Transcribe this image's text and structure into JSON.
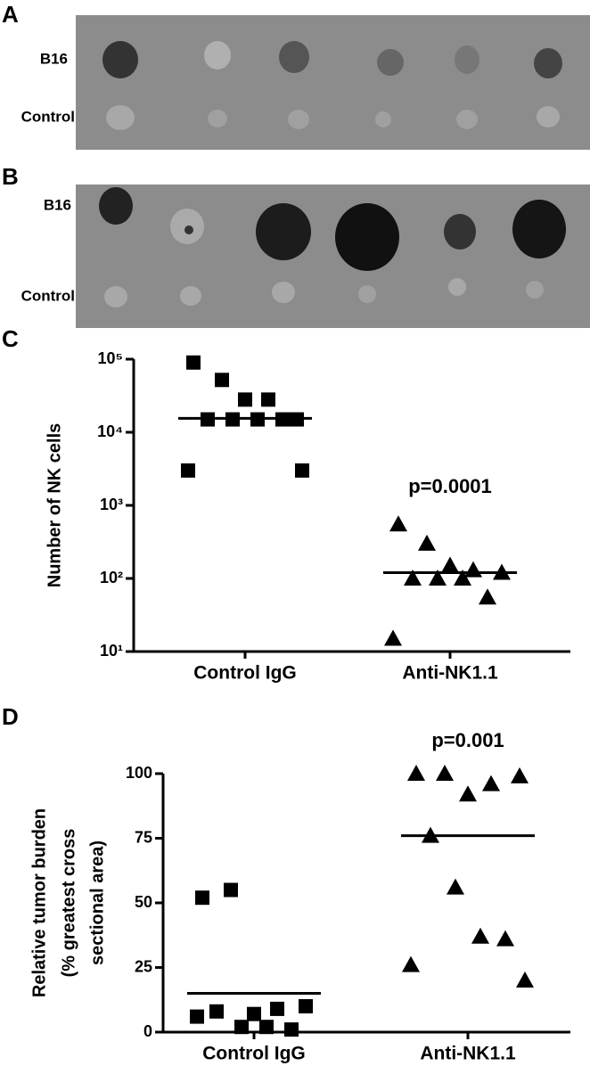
{
  "panels": [
    {
      "label": "A",
      "rows": [
        "B16",
        "Control"
      ]
    },
    {
      "label": "B",
      "rows": [
        "B16",
        "Control"
      ]
    }
  ],
  "chart_data": [
    {
      "type": "scatter",
      "panel": "C",
      "log_y": true,
      "y_label": [
        "Number of NK cells"
      ],
      "categories": [
        "Control IgG",
        "Anti-NK1.1"
      ],
      "markers": [
        "square",
        "triangle"
      ],
      "color": "#000000",
      "values": [
        [
          90000,
          52000,
          28000,
          28000,
          15000,
          15000,
          15000,
          15000,
          15000,
          3000,
          3000
        ],
        [
          550,
          300,
          150,
          130,
          120,
          100,
          100,
          100,
          55,
          15
        ]
      ],
      "center_values": [
        15500,
        120
      ],
      "annotations": [
        {
          "text": "p=0.0001",
          "category": 1
        }
      ],
      "ylim": [
        10,
        100000
      ],
      "yticks": [
        {
          "value": 10,
          "label": "10¹"
        },
        {
          "value": 100,
          "label": "10²"
        },
        {
          "value": 1000,
          "label": "10³"
        },
        {
          "value": 10000,
          "label": "10⁴"
        },
        {
          "value": 100000,
          "label": "10⁵"
        }
      ]
    },
    {
      "type": "scatter",
      "panel": "D",
      "log_y": false,
      "y_label": [
        "Relative tumor burden",
        "(% greatest cross",
        "sectional area)"
      ],
      "categories": [
        "Control IgG",
        "Anti-NK1.1"
      ],
      "markers": [
        "square",
        "triangle"
      ],
      "color": "#000000",
      "values": [
        [
          52,
          55,
          7,
          9,
          10,
          8,
          2,
          2,
          1,
          6
        ],
        [
          100,
          100,
          92,
          96,
          99,
          76,
          56,
          37,
          36,
          26,
          20
        ]
      ],
      "center_values": [
        15,
        76
      ],
      "annotations": [
        {
          "text": "p=0.001",
          "category": 1
        }
      ],
      "ylim": [
        0,
        100
      ],
      "yticks": [
        0,
        25,
        50,
        75,
        100
      ]
    }
  ]
}
